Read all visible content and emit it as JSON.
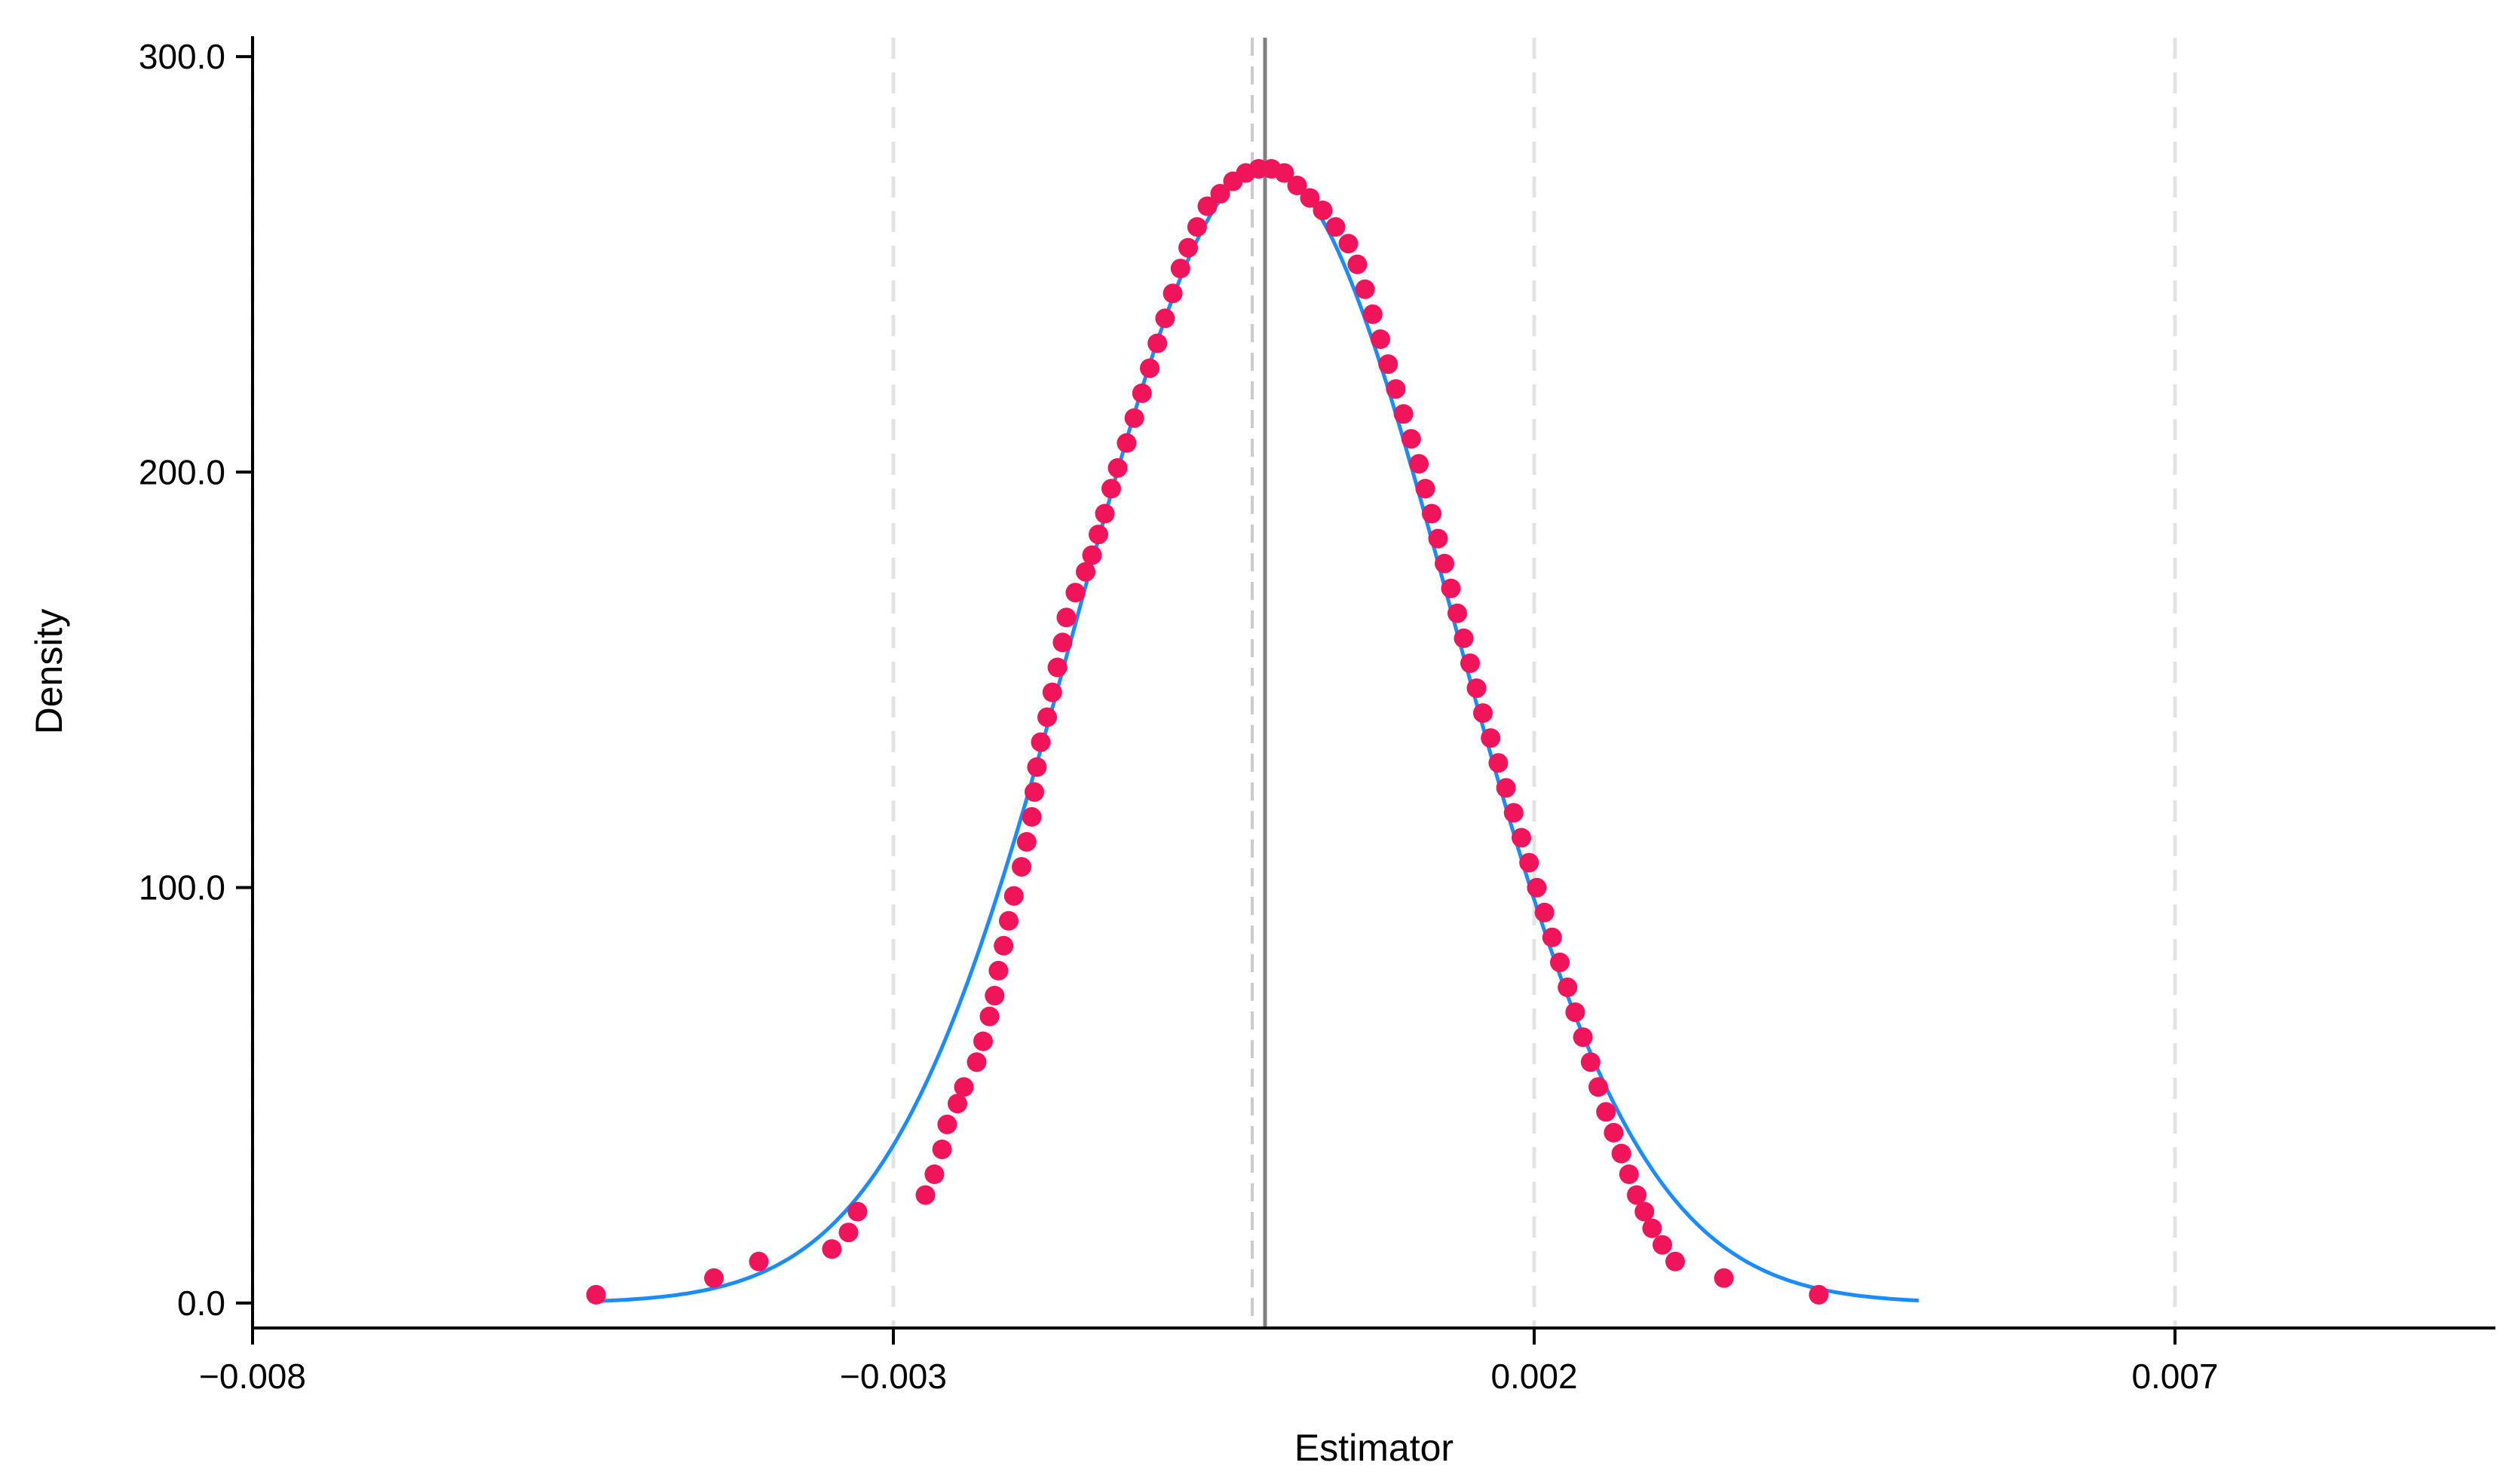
{
  "chart_data": {
    "type": "scatter",
    "xlabel": "Estimator",
    "ylabel": "Density",
    "xlim": [
      -0.008,
      0.0095
    ],
    "ylim": [
      -6.0,
      310.0
    ],
    "x_ticks": [
      -0.008,
      -0.003,
      0.002,
      0.007
    ],
    "x_tick_labels": [
      "−0.008",
      "−0.003",
      "0.002",
      "0.007"
    ],
    "y_ticks": [
      0,
      100,
      200,
      300
    ],
    "y_tick_labels": [
      "0.0",
      "100.0",
      "200.0",
      "300.0"
    ],
    "grid": "vertical dashed at x ticks",
    "reference_lines": [
      {
        "x": -0.0002,
        "style": "dashed",
        "color": "#cccccc"
      },
      {
        "x": -0.0001,
        "style": "solid",
        "color": "#7f7f7f"
      }
    ],
    "normal_curve": {
      "mean": -0.0001,
      "sd": 0.00146,
      "x_range": [
        -0.0053,
        0.005
      ],
      "color": "#1a8cff"
    },
    "series": [
      {
        "color": "#f0145a",
        "points": [
          [
            -0.00532,
            2
          ],
          [
            -0.0044,
            6
          ],
          [
            -0.00405,
            10
          ],
          [
            -0.00348,
            13
          ],
          [
            -0.00335,
            17
          ],
          [
            -0.00328,
            22
          ],
          [
            -0.00275,
            26
          ],
          [
            -0.00268,
            31
          ],
          [
            -0.00262,
            37
          ],
          [
            -0.00258,
            43
          ],
          [
            -0.0025,
            48
          ],
          [
            -0.00245,
            52
          ],
          [
            -0.00235,
            58
          ],
          [
            -0.0023,
            63
          ],
          [
            -0.00225,
            69
          ],
          [
            -0.00221,
            74
          ],
          [
            -0.00218,
            80
          ],
          [
            -0.00214,
            86
          ],
          [
            -0.0021,
            92
          ],
          [
            -0.00206,
            98
          ],
          [
            -0.002,
            105
          ],
          [
            -0.00196,
            111
          ],
          [
            -0.00192,
            117
          ],
          [
            -0.0019,
            123
          ],
          [
            -0.00188,
            129
          ],
          [
            -0.00185,
            135
          ],
          [
            -0.0018,
            141
          ],
          [
            -0.00176,
            147
          ],
          [
            -0.00172,
            153
          ],
          [
            -0.00168,
            159
          ],
          [
            -0.00165,
            165
          ],
          [
            -0.00158,
            171
          ],
          [
            -0.0015,
            176
          ],
          [
            -0.00145,
            180
          ],
          [
            -0.0014,
            185
          ],
          [
            -0.00135,
            190
          ],
          [
            -0.0013,
            196
          ],
          [
            -0.00125,
            201
          ],
          [
            -0.00118,
            207
          ],
          [
            -0.00112,
            213
          ],
          [
            -0.00106,
            219
          ],
          [
            -0.001,
            225
          ],
          [
            -0.00094,
            231
          ],
          [
            -0.00088,
            237
          ],
          [
            -0.00082,
            243
          ],
          [
            -0.00076,
            249
          ],
          [
            -0.0007,
            254
          ],
          [
            -0.00063,
            259
          ],
          [
            -0.00055,
            264
          ],
          [
            -0.00045,
            267
          ],
          [
            -0.00035,
            270
          ],
          [
            -0.00025,
            272
          ],
          [
            -0.00015,
            273
          ],
          [
            -5e-05,
            273
          ],
          [
            5e-05,
            272
          ],
          [
            0.00015,
            269
          ],
          [
            0.00025,
            266
          ],
          [
            0.00035,
            263
          ],
          [
            0.00045,
            259
          ],
          [
            0.00055,
            255
          ],
          [
            0.00062,
            250
          ],
          [
            0.00068,
            244
          ],
          [
            0.00074,
            238
          ],
          [
            0.0008,
            232
          ],
          [
            0.00086,
            226
          ],
          [
            0.00092,
            220
          ],
          [
            0.00098,
            214
          ],
          [
            0.00104,
            208
          ],
          [
            0.0011,
            202
          ],
          [
            0.00115,
            196
          ],
          [
            0.0012,
            190
          ],
          [
            0.00125,
            184
          ],
          [
            0.0013,
            178
          ],
          [
            0.00135,
            172
          ],
          [
            0.0014,
            166
          ],
          [
            0.00145,
            160
          ],
          [
            0.0015,
            154
          ],
          [
            0.00155,
            148
          ],
          [
            0.0016,
            142
          ],
          [
            0.00166,
            136
          ],
          [
            0.00172,
            130
          ],
          [
            0.00178,
            124
          ],
          [
            0.00184,
            118
          ],
          [
            0.0019,
            112
          ],
          [
            0.00196,
            106
          ],
          [
            0.00202,
            100
          ],
          [
            0.00208,
            94
          ],
          [
            0.00214,
            88
          ],
          [
            0.0022,
            82
          ],
          [
            0.00226,
            76
          ],
          [
            0.00232,
            70
          ],
          [
            0.00238,
            64
          ],
          [
            0.00244,
            58
          ],
          [
            0.0025,
            52
          ],
          [
            0.00256,
            46
          ],
          [
            0.00262,
            41
          ],
          [
            0.00268,
            36
          ],
          [
            0.00274,
            31
          ],
          [
            0.0028,
            26
          ],
          [
            0.00286,
            22
          ],
          [
            0.00292,
            18
          ],
          [
            0.003,
            14
          ],
          [
            0.0031,
            10
          ],
          [
            0.00348,
            6
          ],
          [
            0.00422,
            2
          ]
        ]
      }
    ]
  }
}
